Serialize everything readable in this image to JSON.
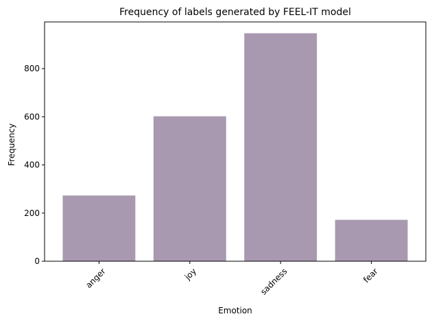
{
  "chart_data": {
    "type": "bar",
    "title": "Frequency of labels generated by FEEL-IT model",
    "xlabel": "Emotion",
    "ylabel": "Frequency",
    "categories": [
      "anger",
      "joy",
      "sadness",
      "fear"
    ],
    "values": [
      273,
      602,
      947,
      172
    ],
    "ylim": [
      0,
      994
    ],
    "yticks": [
      0,
      200,
      400,
      600,
      800
    ],
    "grid": false,
    "legend": "none",
    "bar_color": "#a899b1",
    "xtick_rotation": 45
  }
}
